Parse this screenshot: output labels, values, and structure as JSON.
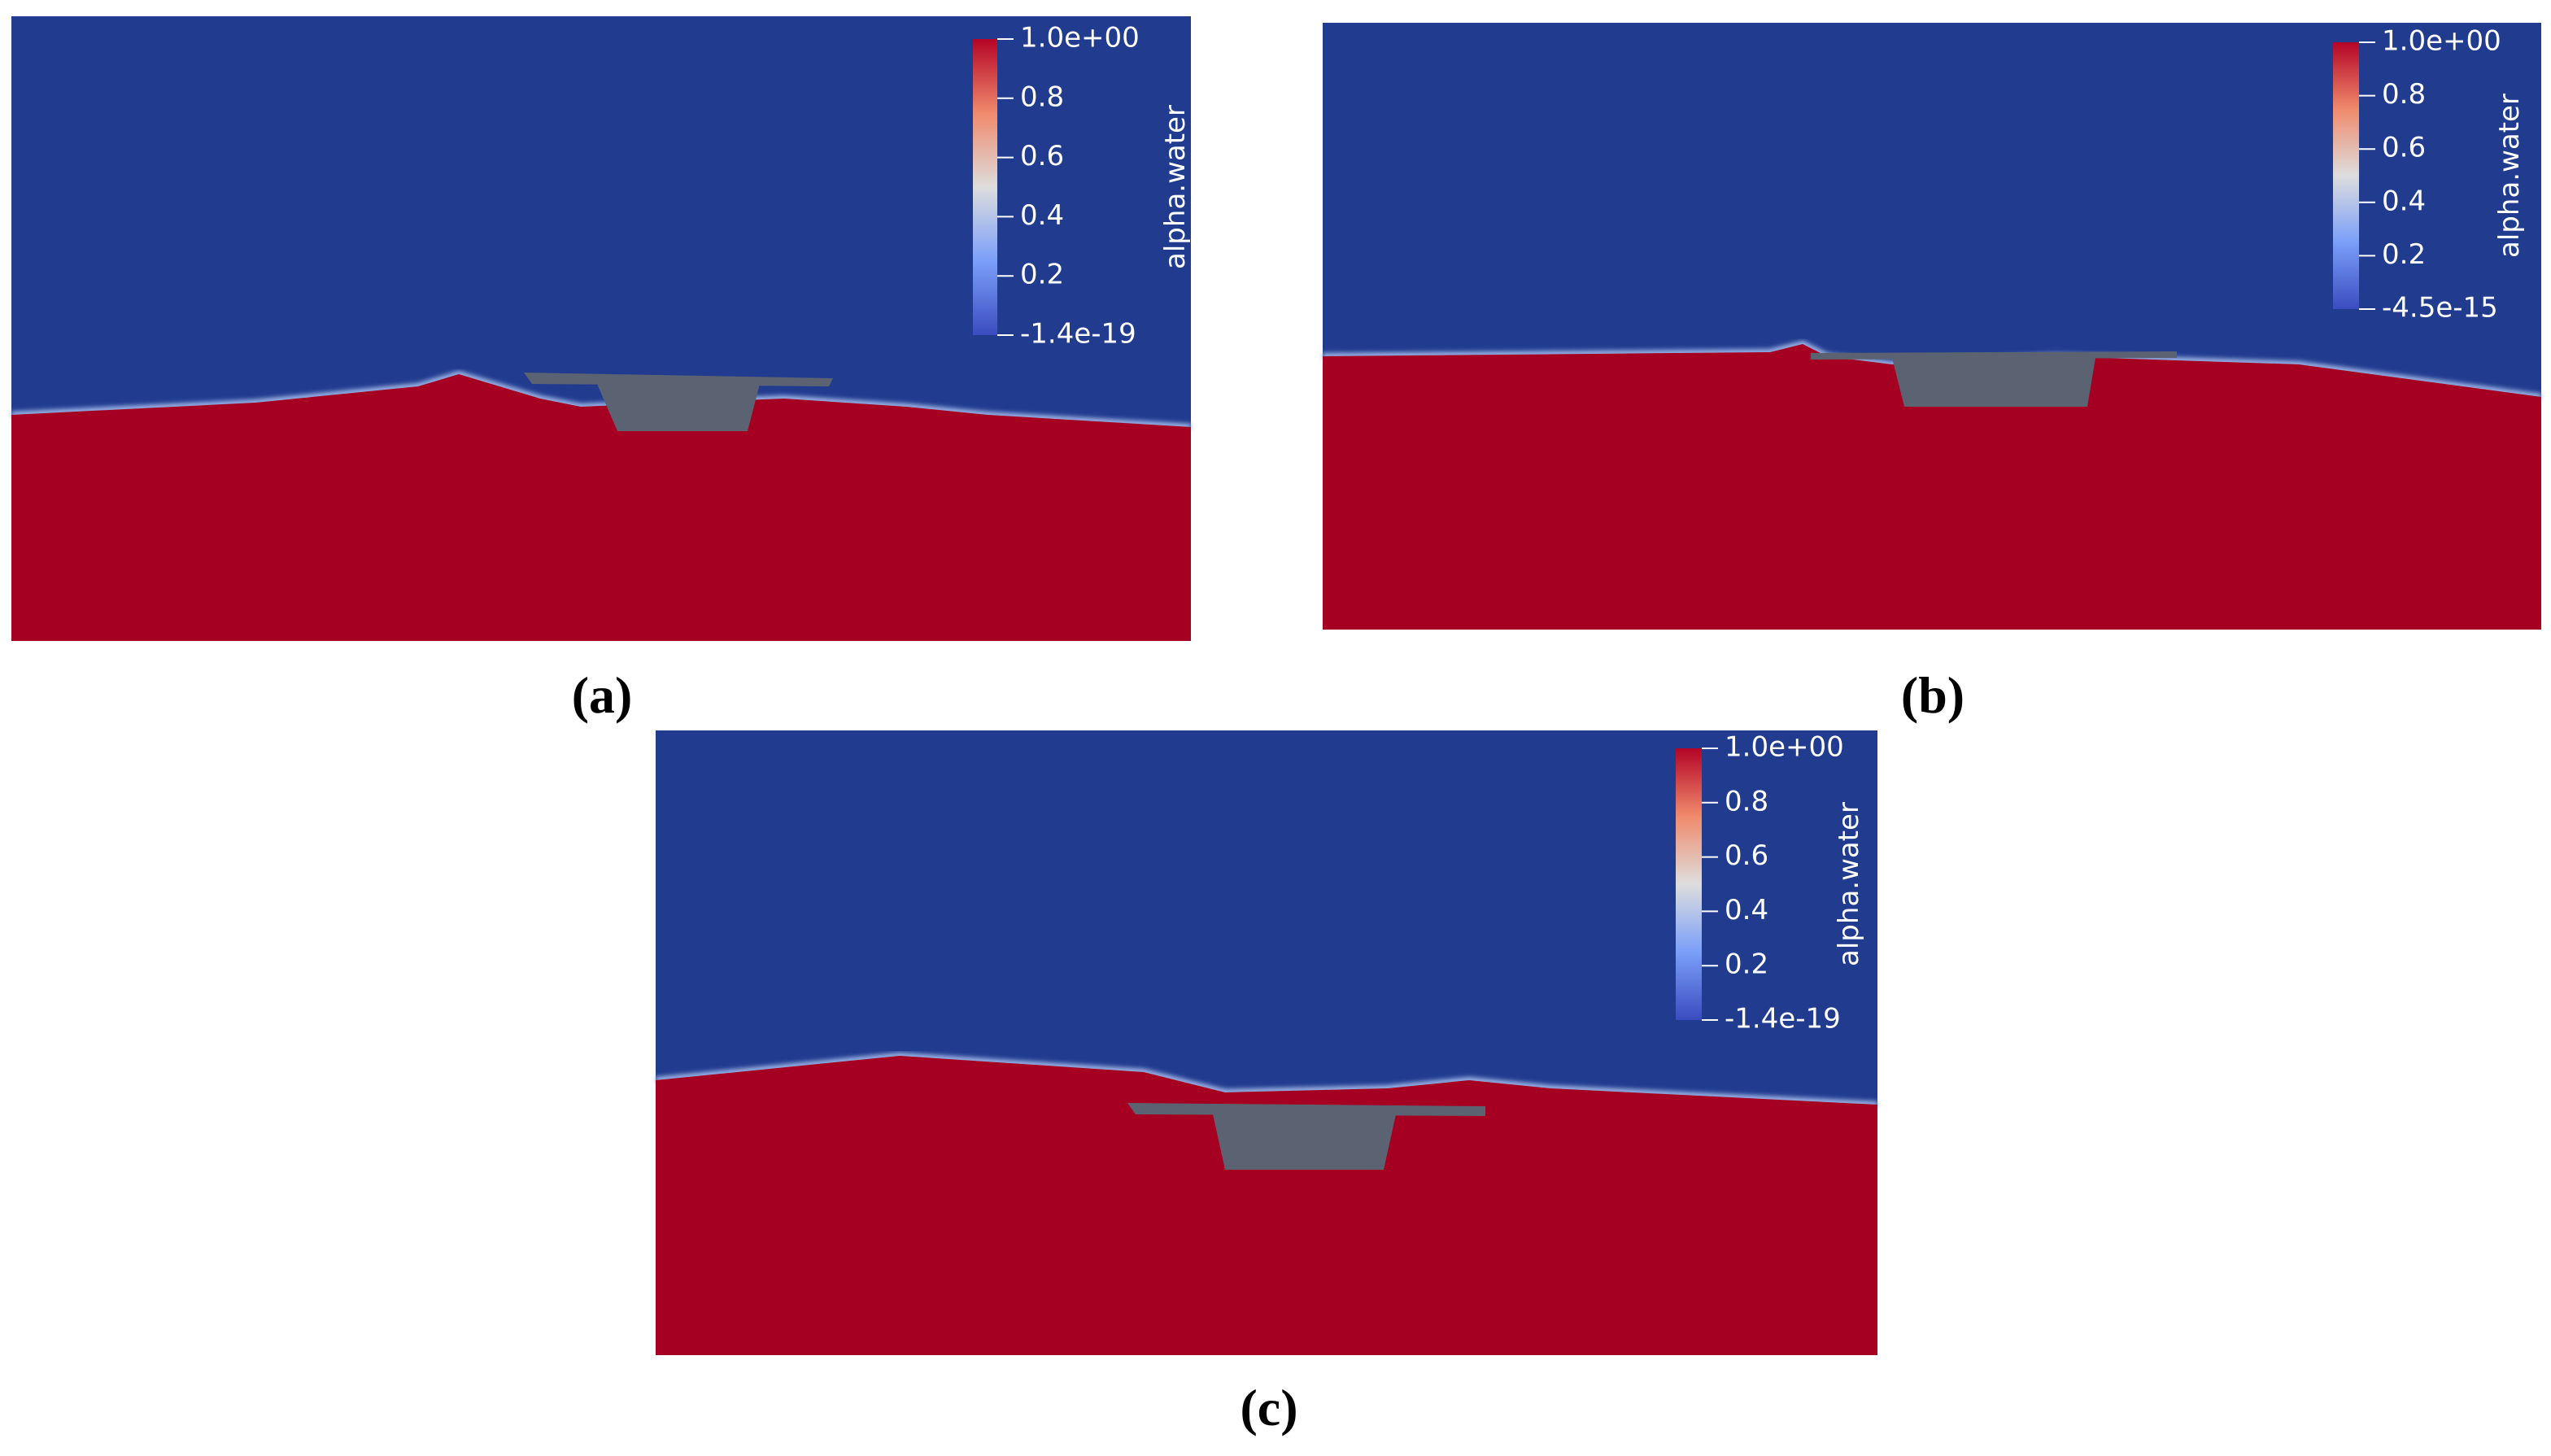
{
  "panels": [
    {
      "label": "(a)",
      "colorbar": {
        "title": "alpha.water",
        "ticks": [
          "1.0e+00",
          "0.8",
          "0.6",
          "0.4",
          "0.2",
          "-1.4e-19"
        ]
      }
    },
    {
      "label": "(b)",
      "colorbar": {
        "title": "alpha.water",
        "ticks": [
          "1.0e+00",
          "0.8",
          "0.6",
          "0.4",
          "0.2",
          "-4.5e-15"
        ]
      }
    },
    {
      "label": "(c)",
      "colorbar": {
        "title": "alpha.water",
        "ticks": [
          "1.0e+00",
          "0.8",
          "0.6",
          "0.4",
          "0.2",
          "-1.4e-19"
        ]
      }
    }
  ]
}
